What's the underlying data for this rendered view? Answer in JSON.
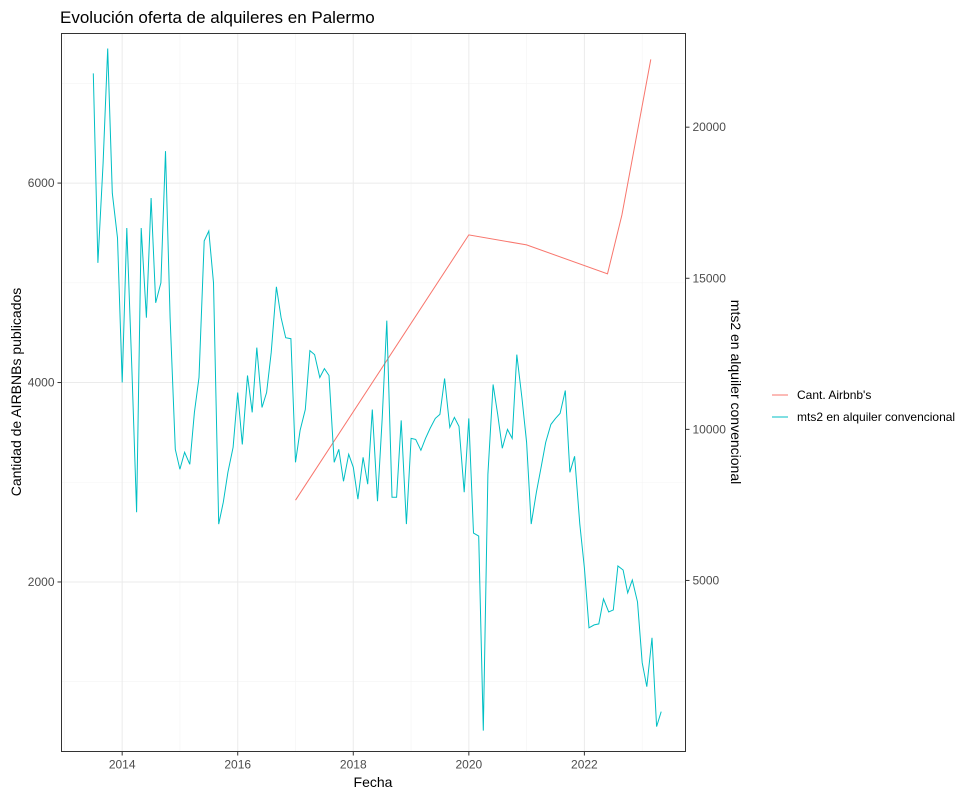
{
  "chart_data": {
    "type": "line",
    "title": "Evolución oferta de alquileres en Palermo",
    "xlabel": "Fecha",
    "ylabel_left": "Cantidad de AIRBNBs publicados",
    "ylabel_right": "mts2 en alquiler convencional",
    "x_ticks": [
      {
        "value": 2014,
        "label": "2014"
      },
      {
        "value": 2016,
        "label": "2016"
      },
      {
        "value": 2018,
        "label": "2018"
      },
      {
        "value": 2020,
        "label": "2020"
      },
      {
        "value": 2022,
        "label": "2022"
      }
    ],
    "y_left_ticks": [
      {
        "value": 2000,
        "label": "2000"
      },
      {
        "value": 4000,
        "label": "4000"
      },
      {
        "value": 6000,
        "label": "6000"
      }
    ],
    "y_right_ticks": [
      {
        "value": 5000,
        "label": "5000"
      },
      {
        "value": 10000,
        "label": "10000"
      },
      {
        "value": 15000,
        "label": "15000"
      },
      {
        "value": 20000,
        "label": "20000"
      }
    ],
    "xlim": [
      2012.95,
      2023.75
    ],
    "ylim_left": [
      300,
      7500
    ],
    "right_axis_scale": "mts2 = Cantidad × 3.3 − 1650",
    "grid": true,
    "legend_position": "right",
    "legend": [
      {
        "label": "Cant. Airbnb's",
        "color": "#f8766d"
      },
      {
        "label": "mts2 en alquiler convencional",
        "color": "#00bfc4"
      }
    ],
    "series": [
      {
        "name": "Cant. Airbnb's",
        "color": "#f8766d",
        "axis": "left",
        "x": [
          2017.0,
          2020.0,
          2021.0,
          2022.4,
          2022.65,
          2023.15
        ],
        "y": [
          2820,
          5480,
          5380,
          5090,
          5680,
          7240
        ]
      },
      {
        "name": "mts2 en alquiler convencional",
        "color": "#00bfc4",
        "axis": "left",
        "x": [
          2013.5,
          2013.58,
          2013.67,
          2013.75,
          2013.83,
          2013.92,
          2014.0,
          2014.08,
          2014.17,
          2014.25,
          2014.33,
          2014.42,
          2014.5,
          2014.58,
          2014.67,
          2014.75,
          2014.83,
          2014.92,
          2015.0,
          2015.08,
          2015.17,
          2015.25,
          2015.33,
          2015.42,
          2015.5,
          2015.58,
          2015.67,
          2015.75,
          2015.83,
          2015.92,
          2016.0,
          2016.08,
          2016.17,
          2016.25,
          2016.33,
          2016.42,
          2016.5,
          2016.58,
          2016.67,
          2016.75,
          2016.83,
          2016.92,
          2017.0,
          2017.08,
          2017.17,
          2017.25,
          2017.33,
          2017.42,
          2017.5,
          2017.58,
          2017.67,
          2017.75,
          2017.83,
          2017.92,
          2018.0,
          2018.08,
          2018.17,
          2018.25,
          2018.33,
          2018.42,
          2018.5,
          2018.58,
          2018.67,
          2018.75,
          2018.83,
          2018.92,
          2019.0,
          2019.08,
          2019.17,
          2019.25,
          2019.33,
          2019.42,
          2019.5,
          2019.58,
          2019.67,
          2019.75,
          2019.83,
          2019.92,
          2020.0,
          2020.08,
          2020.17,
          2020.25,
          2020.33,
          2020.42,
          2020.5,
          2020.58,
          2020.67,
          2020.75,
          2020.83,
          2020.92,
          2021.0,
          2021.08,
          2021.17,
          2021.25,
          2021.33,
          2021.42,
          2021.5,
          2021.58,
          2021.67,
          2021.75,
          2021.83,
          2021.92,
          2022.0,
          2022.08,
          2022.17,
          2022.25,
          2022.33,
          2022.42,
          2022.5,
          2022.58,
          2022.67,
          2022.75,
          2022.83,
          2022.92,
          2023.0,
          2023.08,
          2023.17,
          2023.25,
          2023.33
        ],
        "y": [
          7100,
          5200,
          6200,
          7350,
          5900,
          5450,
          4000,
          5550,
          4100,
          2700,
          5550,
          4650,
          5850,
          4800,
          5000,
          6320,
          4650,
          3330,
          3130,
          3300,
          3180,
          3700,
          4050,
          5420,
          5520,
          5000,
          2580,
          2800,
          3100,
          3350,
          3900,
          3380,
          4070,
          3700,
          4350,
          3750,
          3900,
          4300,
          4960,
          4650,
          4450,
          4440,
          3200,
          3520,
          3730,
          4320,
          4280,
          4050,
          4140,
          4070,
          3200,
          3330,
          3010,
          3280,
          3150,
          2830,
          3250,
          2980,
          3730,
          2810,
          3640,
          4620,
          2850,
          2850,
          3620,
          2580,
          3440,
          3430,
          3320,
          3440,
          3540,
          3640,
          3680,
          4040,
          3550,
          3650,
          3560,
          2900,
          3640,
          2490,
          2460,
          510,
          3080,
          3980,
          3680,
          3340,
          3530,
          3440,
          4280,
          3840,
          3400,
          2580,
          2900,
          3150,
          3400,
          3580,
          3640,
          3690,
          3920,
          3100,
          3260,
          2580,
          2140,
          1540,
          1570,
          1580,
          1830,
          1700,
          1720,
          2160,
          2120,
          1890,
          2020,
          1800,
          1190,
          950,
          1440,
          550,
          700
        ]
      }
    ]
  }
}
